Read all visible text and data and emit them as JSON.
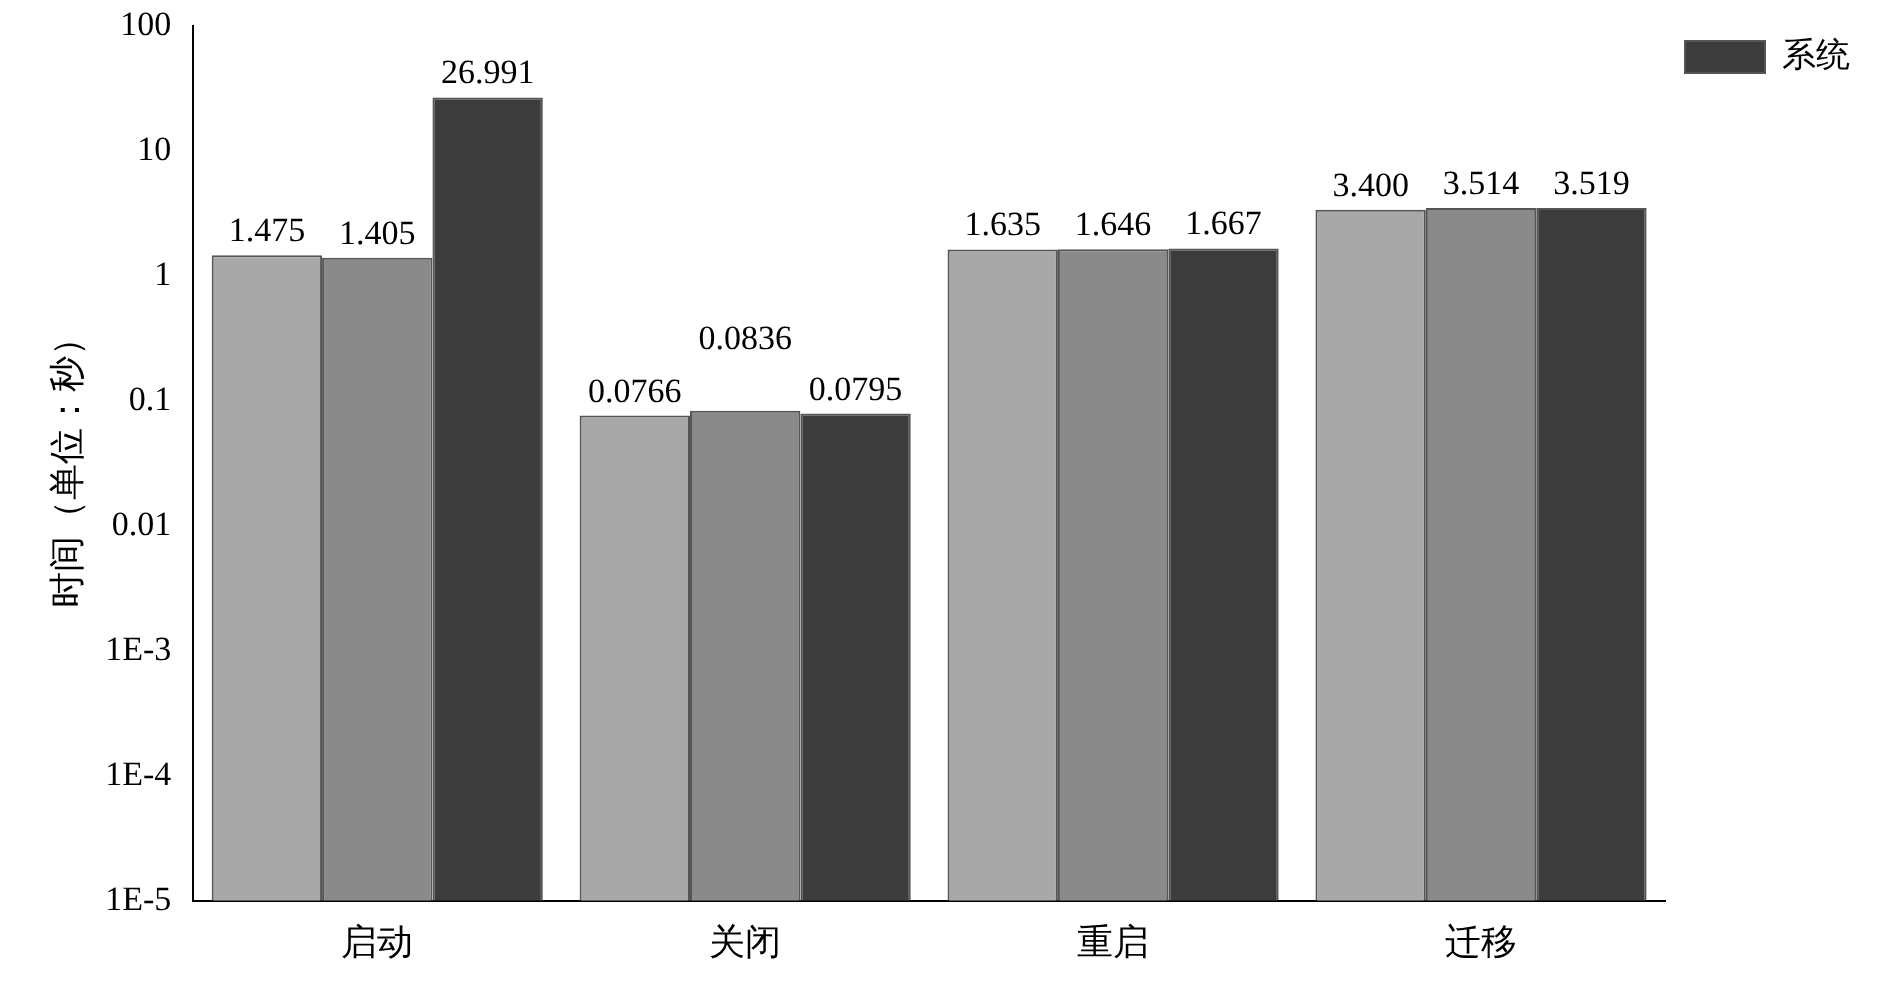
{
  "chart_data": {
    "type": "bar",
    "ylabel": "时间（单位：秒）",
    "categories": [
      "启动",
      "关闭",
      "重启",
      "迁移"
    ],
    "series": [
      {
        "color": "#a8a8a8",
        "values": [
          1.475,
          0.0766,
          1.635,
          3.4
        ],
        "value_labels": [
          "1.475",
          "0.0766",
          "1.635",
          "3.400"
        ]
      },
      {
        "color": "#8a8a8a",
        "values": [
          1.405,
          0.0836,
          1.646,
          3.514
        ],
        "value_labels": [
          "1.405",
          "0.0836",
          "1.646",
          "3.514"
        ]
      },
      {
        "name": "系统",
        "color": "#3c3c3c",
        "values": [
          26.991,
          0.0795,
          1.667,
          3.519
        ],
        "value_labels": [
          "26.991",
          "0.0795",
          "1.667",
          "3.519"
        ]
      }
    ],
    "log": true,
    "ylim": [
      1e-05,
      100
    ],
    "yticks": [
      {
        "value": 1e-05,
        "label": "1E-5"
      },
      {
        "value": 0.0001,
        "label": "1E-4"
      },
      {
        "value": 0.001,
        "label": "1E-3"
      },
      0.01,
      0.1,
      1,
      10,
      100
    ],
    "grid": false,
    "legend": "top right"
  }
}
